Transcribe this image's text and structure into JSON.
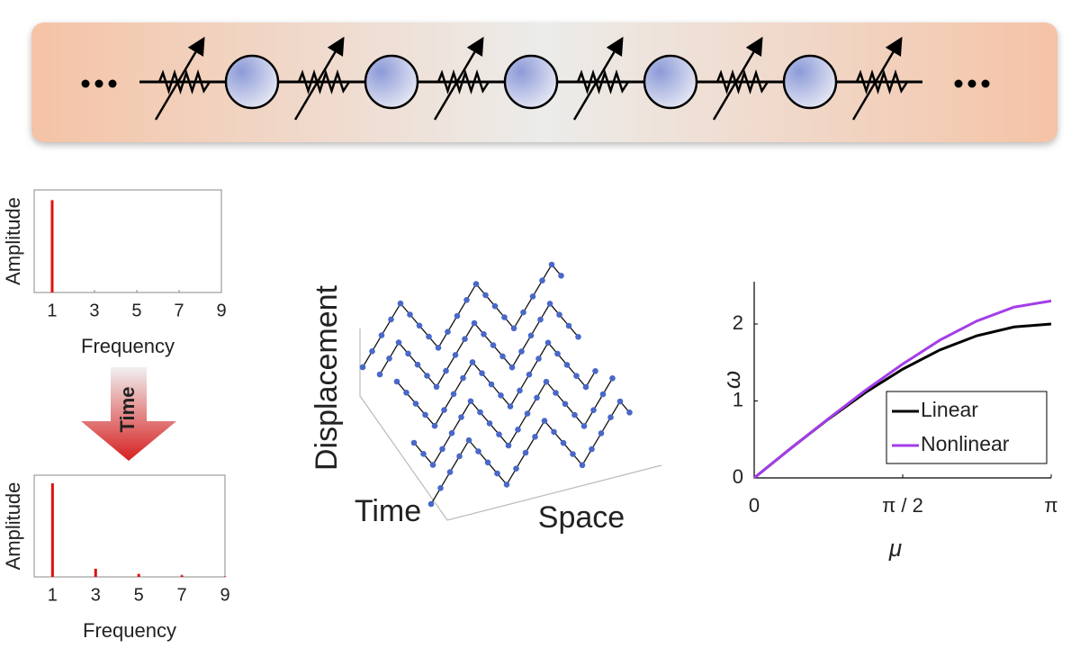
{
  "chart_data": [
    {
      "type": "bar",
      "x": [
        1
      ],
      "values": [
        0.9
      ],
      "color": "#e01010",
      "xlabel": "Frequency",
      "ylabel": "Amplitude",
      "xlim": [
        0.15,
        9
      ],
      "xticks": [
        1,
        3,
        5,
        7,
        9
      ],
      "ylim": [
        0,
        1
      ]
    },
    {
      "type": "bar",
      "x": [
        1,
        3,
        5,
        7,
        9
      ],
      "values": [
        0.92,
        0.08,
        0.03,
        0.015,
        0.005
      ],
      "color": "#e01010",
      "xlabel": "Frequency",
      "ylabel": "Amplitude",
      "xlim": [
        0.15,
        9
      ],
      "xticks": [
        1,
        3,
        5,
        7,
        9
      ],
      "ylim": [
        0,
        1
      ]
    },
    {
      "type": "waterfall",
      "zlabel": "Displacement",
      "ylabel": "Time",
      "xlabel": "Space"
    },
    {
      "type": "line",
      "xlabel": "μ",
      "ylabel": "ω",
      "x": [
        0,
        0.3927,
        0.7854,
        1.1781,
        1.5708,
        1.9635,
        2.3562,
        2.7489,
        3.1416
      ],
      "series": [
        {
          "name": "Linear",
          "color": "#000000",
          "values": [
            0,
            0.39,
            0.765,
            1.111,
            1.414,
            1.663,
            1.848,
            1.962,
            2.0
          ]
        },
        {
          "name": "Nonlinear",
          "color": "#a33de8",
          "values": [
            0,
            0.39,
            0.77,
            1.14,
            1.48,
            1.79,
            2.04,
            2.22,
            2.3
          ]
        }
      ],
      "xlim": [
        0,
        3.1416
      ],
      "xticks": [
        {
          "value": 0,
          "label": "0"
        },
        {
          "value": 1.5708,
          "label": "π / 2"
        },
        {
          "value": 3.1416,
          "label": "π"
        }
      ],
      "ylim": [
        0,
        2.55
      ],
      "yticks": [
        0,
        1,
        2
      ],
      "legend": "lower right"
    }
  ],
  "annotation": "Time"
}
